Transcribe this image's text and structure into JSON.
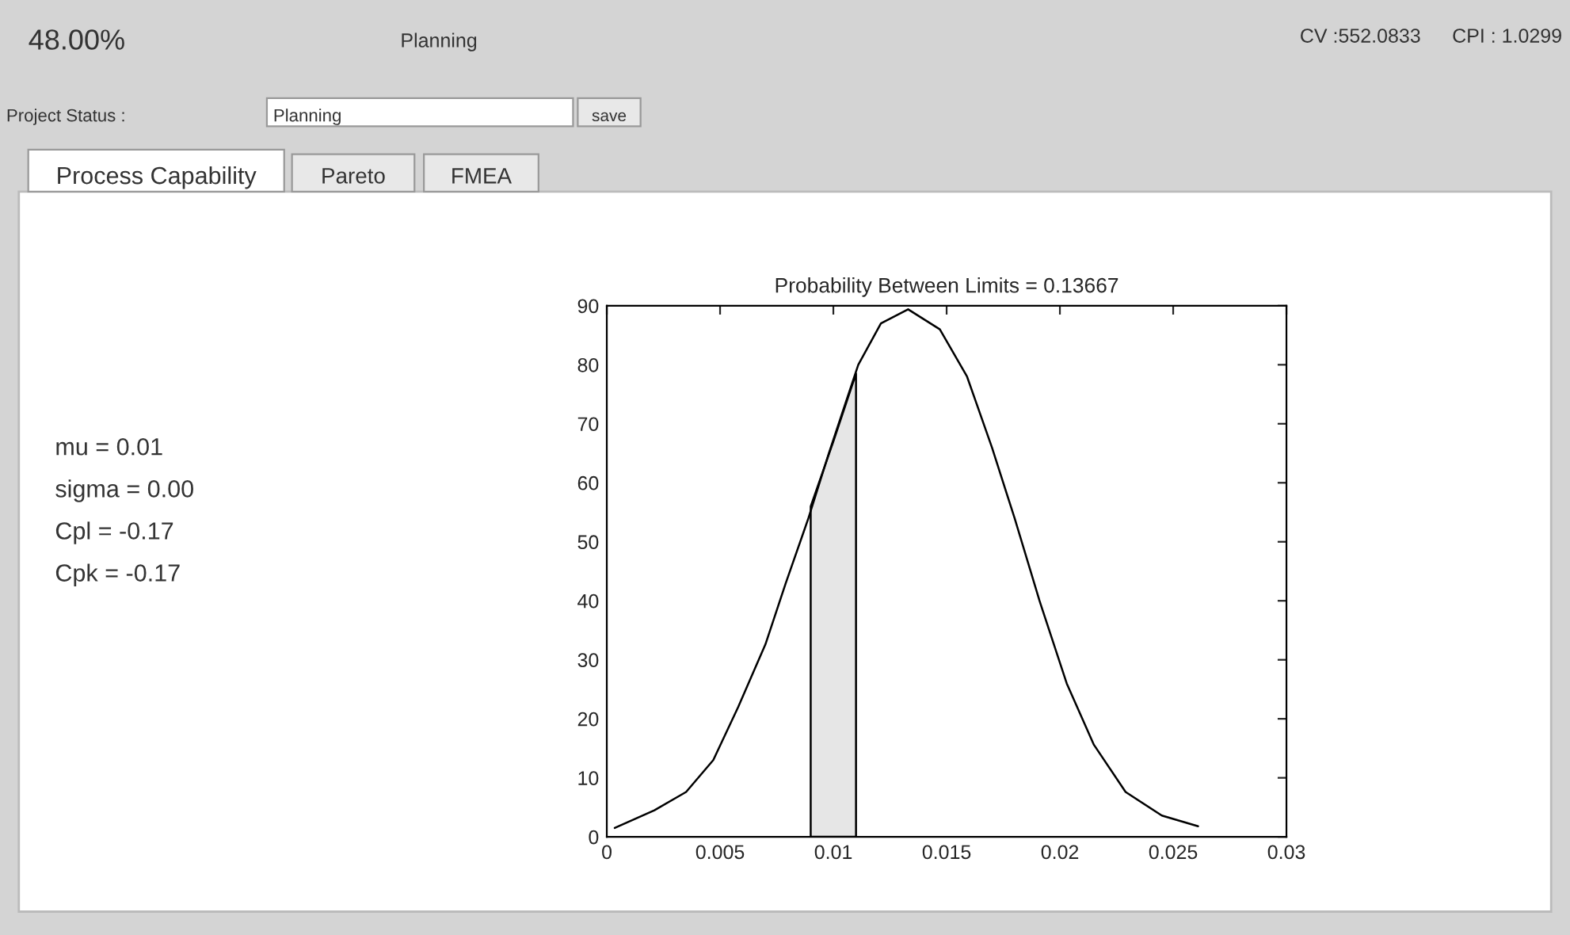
{
  "chart_data": {
    "type": "line",
    "title": "Probability Between Limits = 0.13667",
    "series": [
      {
        "color": "#000000",
        "x": [
          0.00035,
          0.0021,
          0.0035,
          0.0047,
          0.0058,
          0.007,
          0.0079,
          0.0089,
          0.0098,
          0.0111,
          0.0121,
          0.0133,
          0.0147,
          0.0159,
          0.017,
          0.018,
          0.0191,
          0.0203,
          0.0215,
          0.0229,
          0.0245,
          0.0261
        ],
        "values": [
          1.5,
          4.5,
          7.6,
          13,
          22,
          32.6,
          43,
          54,
          65,
          80,
          87,
          89.4,
          86,
          78,
          66,
          54,
          40,
          26,
          15.6,
          7.6,
          3.6,
          1.8
        ]
      },
      {
        "type": "area",
        "color": "#e6e6e6",
        "x": [
          0.009,
          0.01,
          0.011
        ],
        "values": [
          56,
          67,
          78.5
        ]
      }
    ],
    "xlim": [
      0,
      0.03
    ],
    "xticks": [
      0,
      0.005,
      0.01,
      0.015,
      0.02,
      0.025,
      0.03
    ],
    "ylim": [
      0,
      90
    ],
    "yticks": [
      0,
      10,
      20,
      30,
      40,
      50,
      60,
      70,
      80,
      90
    ],
    "grid": false,
    "annotations": [
      "48.00%",
      "Planning",
      "CV :552.0833",
      "CPI : 1.0299",
      "Project Status :",
      "Planning",
      "save",
      "Process Capability",
      "Pareto",
      "FMEA",
      "mu = 0.01",
      "sigma = 0.00",
      "Cpl = -0.17",
      "Cpk = -0.17"
    ]
  }
}
